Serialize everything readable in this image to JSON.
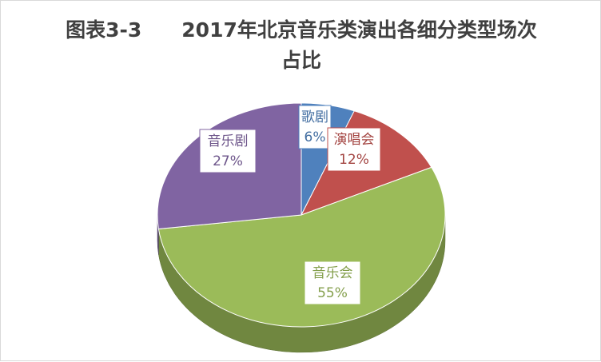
{
  "chart_data": {
    "type": "pie",
    "title": "图表3-3　　2017年北京音乐类演出各细分类型场次占比",
    "categories": [
      "歌剧",
      "演唱会",
      "音乐会",
      "音乐剧"
    ],
    "values": [
      6,
      12,
      55,
      27
    ],
    "value_labels": [
      "6%",
      "12%",
      "55%",
      "27%"
    ],
    "colors": [
      "#4f81bd",
      "#c0504d",
      "#9bbb59",
      "#8064a2"
    ]
  }
}
